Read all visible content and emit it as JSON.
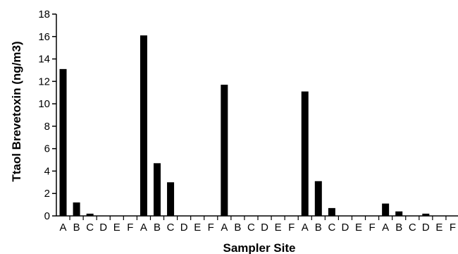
{
  "chart_data": {
    "type": "bar",
    "title": "",
    "xlabel": "Sampler Site",
    "ylabel": "Ttaol Brevetoxin (ng/m3)",
    "ylim": [
      0,
      18
    ],
    "yticks": [
      0,
      2,
      4,
      6,
      8,
      10,
      12,
      14,
      16,
      18
    ],
    "grid": false,
    "legend": "none",
    "bar_color": "#000000",
    "categories": [
      "A",
      "B",
      "C",
      "D",
      "E",
      "F",
      "A",
      "B",
      "C",
      "D",
      "E",
      "F",
      "A",
      "B",
      "C",
      "D",
      "E",
      "F",
      "A",
      "B",
      "C",
      "D",
      "E",
      "F",
      "A",
      "B",
      "C",
      "D",
      "E",
      "F"
    ],
    "values": [
      13.1,
      1.2,
      0.2,
      0,
      0,
      0,
      16.1,
      4.7,
      3.0,
      0,
      0,
      0,
      11.7,
      0,
      0,
      0,
      0,
      0,
      11.1,
      3.1,
      0.7,
      0,
      0,
      0,
      1.1,
      0.4,
      0,
      0.2,
      0,
      0
    ]
  }
}
